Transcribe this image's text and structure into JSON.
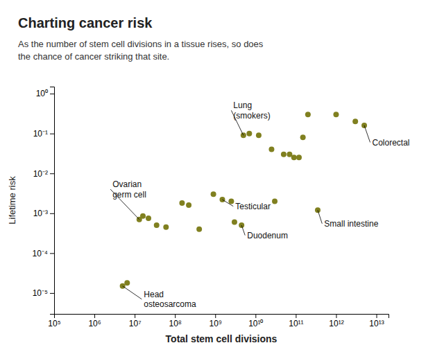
{
  "chart_data": {
    "type": "scatter",
    "title": "Charting cancer risk",
    "subtitle": "As the number of stem cell divisions in a tissue rises, so does\nthe chance of cancer striking that site.",
    "xlabel": "Total stem cell divisions",
    "ylabel": "Lifetime risk",
    "color": "#808020",
    "log": true,
    "grid": false,
    "x": [
      5000000.0,
      6500000.0,
      13000000.0,
      16000000.0,
      22000000.0,
      35000000.0,
      60000000.0,
      150000000.0,
      220000000.0,
      400000000.0,
      900000000.0,
      1500000000.0,
      2500000000.0,
      3000000000.0,
      4500000000.0,
      5000000000.0,
      7000000000.0,
      12000000000.0,
      25000000000.0,
      30000000000.0,
      50000000000.0,
      70000000000.0,
      90000000000.0,
      120000000000.0,
      150000000000.0,
      200000000000.0,
      350000000000.0,
      1000000000000.0,
      3000000000000.0,
      5000000000000.0
    ],
    "values": [
      1.5e-05,
      1.8e-05,
      0.0007,
      0.00085,
      0.00075,
      0.0005,
      0.00045,
      0.0018,
      0.0016,
      0.0004,
      0.003,
      0.0022,
      0.002,
      0.0006,
      0.0005,
      0.09,
      0.1,
      0.09,
      0.04,
      0.002,
      0.03,
      0.03,
      0.025,
      0.025,
      0.08,
      0.3,
      0.0012,
      0.3,
      0.2,
      0.16
    ],
    "xlim": [
      100000.0,
      20000000000000.0
    ],
    "ylim": [
      3e-06,
      1.5
    ],
    "xticks": [
      {
        "value": 100000.0,
        "label": "10⁵"
      },
      {
        "value": 1000000.0,
        "label": "10⁶"
      },
      {
        "value": 10000000.0,
        "label": "10⁷"
      },
      {
        "value": 100000000.0,
        "label": "10⁸"
      },
      {
        "value": 1000000000.0,
        "label": "10⁹"
      },
      {
        "value": 10000000000.0,
        "label": "10¹⁰"
      },
      {
        "value": 100000000000.0,
        "label": "10¹¹"
      },
      {
        "value": 1000000000000.0,
        "label": "10¹²"
      },
      {
        "value": 10000000000000.0,
        "label": "10¹³"
      }
    ],
    "yticks": [
      {
        "value": 1e-05,
        "label": "10⁻⁵"
      },
      {
        "value": 0.0001,
        "label": "10⁻⁴"
      },
      {
        "value": 0.001,
        "label": "10⁻³"
      },
      {
        "value": 0.01,
        "label": "10⁻²"
      },
      {
        "value": 0.1,
        "label": "10⁻¹"
      },
      {
        "value": 1,
        "label": "10⁰"
      }
    ],
    "annotations": [
      {
        "text": "Lung\n(smokers)",
        "x": 5000000000.0,
        "y": 0.09,
        "text_x": 2500000000.0,
        "text_y": 0.38
      },
      {
        "text": "Colorectal",
        "x": 5000000000000.0,
        "y": 0.16,
        "text_x": 7000000000000.0,
        "text_y": 0.06
      },
      {
        "text": "Ovarian\ngerm cell",
        "x": 13000000.0,
        "y": 0.0007,
        "text_x": 2500000.0,
        "text_y": 0.004
      },
      {
        "text": "Head\nosteosarcoma",
        "x": 5000000.0,
        "y": 1.5e-05,
        "text_x": 15000000.0,
        "text_y": 7e-06
      },
      {
        "text": "Testicular",
        "x": 1500000000.0,
        "y": 0.0022,
        "text_x": 2800000000.0,
        "text_y": 0.0015
      },
      {
        "text": "Duodenum",
        "x": 4500000000.0,
        "y": 0.0005,
        "text_x": 5500000000.0,
        "text_y": 0.00028
      },
      {
        "text": "Small intestine",
        "x": 350000000000.0,
        "y": 0.0012,
        "text_x": 450000000000.0,
        "text_y": 0.00055
      }
    ]
  }
}
